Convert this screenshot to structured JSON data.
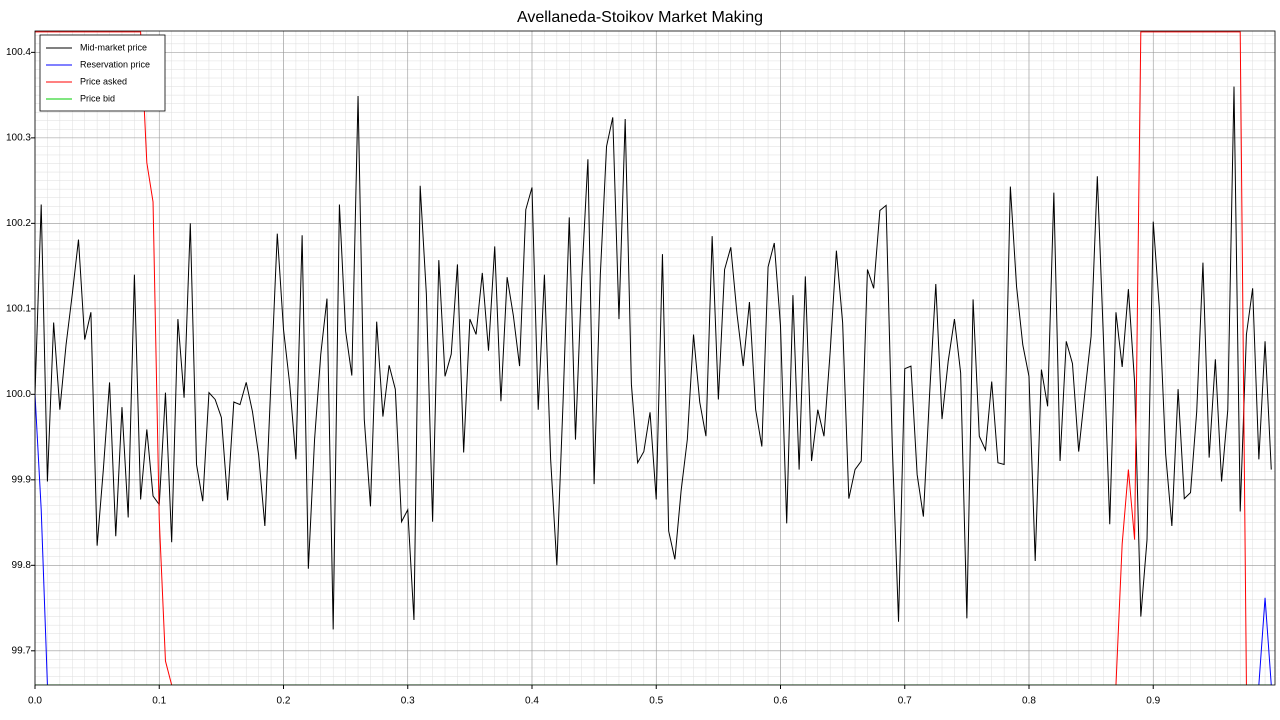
{
  "chart_data": {
    "type": "line",
    "title": "Avellaneda-Stoikov Market Making",
    "xlim": [
      0,
      0.998
    ],
    "ylim": [
      99.66,
      100.425
    ],
    "xticks": [
      {
        "value": 0,
        "label": "0.0"
      },
      0.1,
      0.2,
      0.3,
      0.4,
      0.5,
      0.6,
      0.7,
      0.8,
      0.9
    ],
    "yticks": [
      99.7,
      99.8,
      99.9,
      {
        "value": 100,
        "label": "100.0"
      },
      100.1,
      100.2,
      100.3,
      100.4
    ],
    "grid": true,
    "minor_grid": true,
    "legend": "upper left",
    "x": [
      0,
      0.005,
      0.01,
      0.015,
      0.02,
      0.025,
      0.03,
      0.035,
      0.04,
      0.045,
      0.05,
      0.055,
      0.06,
      0.065,
      0.07,
      0.075,
      0.08,
      0.085,
      0.09,
      0.095,
      0.1,
      0.105,
      0.11,
      0.115,
      0.12,
      0.125,
      0.13,
      0.135,
      0.14,
      0.145,
      0.15,
      0.155,
      0.16,
      0.165,
      0.17,
      0.175,
      0.18,
      0.185,
      0.19,
      0.195,
      0.2,
      0.205,
      0.21,
      0.215,
      0.22,
      0.225,
      0.23,
      0.235,
      0.24,
      0.245,
      0.25,
      0.255,
      0.26,
      0.265,
      0.27,
      0.275,
      0.28,
      0.285,
      0.29,
      0.295,
      0.3,
      0.305,
      0.31,
      0.315,
      0.32,
      0.325,
      0.33,
      0.335,
      0.34,
      0.345,
      0.35,
      0.355,
      0.36,
      0.365,
      0.37,
      0.375,
      0.38,
      0.385,
      0.39,
      0.395,
      0.4,
      0.405,
      0.41,
      0.415,
      0.42,
      0.425,
      0.43,
      0.435,
      0.44,
      0.445,
      0.45,
      0.455,
      0.46,
      0.465,
      0.47,
      0.475,
      0.48,
      0.485,
      0.49,
      0.495,
      0.5,
      0.505,
      0.51,
      0.515,
      0.52,
      0.525,
      0.53,
      0.535,
      0.54,
      0.545,
      0.55,
      0.555,
      0.56,
      0.565,
      0.57,
      0.575,
      0.58,
      0.585,
      0.59,
      0.595,
      0.6,
      0.605,
      0.61,
      0.615,
      0.62,
      0.625,
      0.63,
      0.635,
      0.64,
      0.645,
      0.65,
      0.655,
      0.66,
      0.665,
      0.67,
      0.675,
      0.68,
      0.685,
      0.69,
      0.695,
      0.7,
      0.705,
      0.71,
      0.715,
      0.72,
      0.725,
      0.73,
      0.735,
      0.74,
      0.745,
      0.75,
      0.755,
      0.76,
      0.765,
      0.77,
      0.775,
      0.78,
      0.785,
      0.79,
      0.795,
      0.8,
      0.805,
      0.81,
      0.815,
      0.82,
      0.825,
      0.83,
      0.835,
      0.84,
      0.845,
      0.85,
      0.855,
      0.86,
      0.865,
      0.87,
      0.875,
      0.88,
      0.885,
      0.89,
      0.895,
      0.9,
      0.905,
      0.91,
      0.915,
      0.92,
      0.925,
      0.93,
      0.935,
      0.94,
      0.945,
      0.95,
      0.955,
      0.96,
      0.965,
      0.97,
      0.975,
      0.98,
      0.985,
      0.99,
      0.995
    ],
    "series": [
      {
        "name": "Mid-market price",
        "color": "#000000",
        "values": [
          100.0,
          100.222,
          99.898,
          100.084,
          99.982,
          100.058,
          100.117,
          100.181,
          100.064,
          100.096,
          99.823,
          99.912,
          100.014,
          99.834,
          99.985,
          99.856,
          100.14,
          99.877,
          99.959,
          99.881,
          99.871,
          100.002,
          99.827,
          100.088,
          99.996,
          100.2,
          99.918,
          99.875,
          100.002,
          99.994,
          99.973,
          99.876,
          99.991,
          99.988,
          100.014,
          99.98,
          99.929,
          99.846,
          100.018,
          100.188,
          100.076,
          100.012,
          99.924,
          100.186,
          99.796,
          99.947,
          100.047,
          100.112,
          99.725,
          100.222,
          100.074,
          100.022,
          100.349,
          99.971,
          99.869,
          100.085,
          99.974,
          100.034,
          100.006,
          99.851,
          99.865,
          99.736,
          100.244,
          100.117,
          99.851,
          100.157,
          100.021,
          100.047,
          100.152,
          99.932,
          100.088,
          100.07,
          100.142,
          100.051,
          100.173,
          99.992,
          100.137,
          100.092,
          100.033,
          100.216,
          100.242,
          99.982,
          100.14,
          99.924,
          99.8,
          99.991,
          100.207,
          99.947,
          100.135,
          100.275,
          99.895,
          100.14,
          100.29,
          100.324,
          100.088,
          100.322,
          100.012,
          99.92,
          99.933,
          99.979,
          99.877,
          100.164,
          99.84,
          99.807,
          99.887,
          99.947,
          100.07,
          99.991,
          99.951,
          100.185,
          99.994,
          100.146,
          100.172,
          100.094,
          100.033,
          100.108,
          99.982,
          99.939,
          100.149,
          100.177,
          100.08,
          99.849,
          100.116,
          99.912,
          100.138,
          99.922,
          99.982,
          99.951,
          100.05,
          100.168,
          100.084,
          99.878,
          99.912,
          99.922,
          100.146,
          100.124,
          100.215,
          100.221,
          99.939,
          99.734,
          100.03,
          100.033,
          99.906,
          99.857,
          100.0,
          100.129,
          99.971,
          100.039,
          100.088,
          100.025,
          99.738,
          100.111,
          99.951,
          99.935,
          100.015,
          99.92,
          99.918,
          100.243,
          100.126,
          100.058,
          100.021,
          99.805,
          100.029,
          99.986,
          100.236,
          99.922,
          100.062,
          100.036,
          99.933,
          100.002,
          100.068,
          100.255,
          100.062,
          99.848,
          100.096,
          100.032,
          100.123,
          100.014,
          99.74,
          99.83,
          100.202,
          100.099,
          99.93,
          99.846,
          100.006,
          99.878,
          99.885,
          99.98,
          100.154,
          99.926,
          100.041,
          99.898,
          99.982,
          100.36,
          99.863,
          100.07,
          100.124,
          99.924,
          100.062,
          99.912
        ]
      },
      {
        "name": "Reservation price",
        "color": "#0000ff",
        "x": [
          0,
          0.005,
          0.01,
          0.98,
          0.985,
          0.99,
          0.995
        ],
        "values": [
          100.0,
          99.865,
          99.66,
          null,
          99.66,
          99.762,
          99.66
        ]
      },
      {
        "name": "Price asked",
        "color": "#ff0000",
        "x": [
          0,
          0.085,
          0.09,
          0.095,
          0.1,
          0.105,
          0.11,
          0.865,
          0.87,
          0.875,
          0.88,
          0.885,
          0.89,
          0.97,
          0.975
        ],
        "values": [
          100.424,
          100.424,
          100.271,
          100.225,
          99.854,
          99.688,
          99.66,
          null,
          99.66,
          99.825,
          99.912,
          99.83,
          100.424,
          100.424,
          99.66
        ]
      },
      {
        "name": "Price bid",
        "color": "#00cc00",
        "x": [
          0,
          0.995
        ],
        "values": [
          99.66,
          99.66
        ]
      }
    ]
  }
}
